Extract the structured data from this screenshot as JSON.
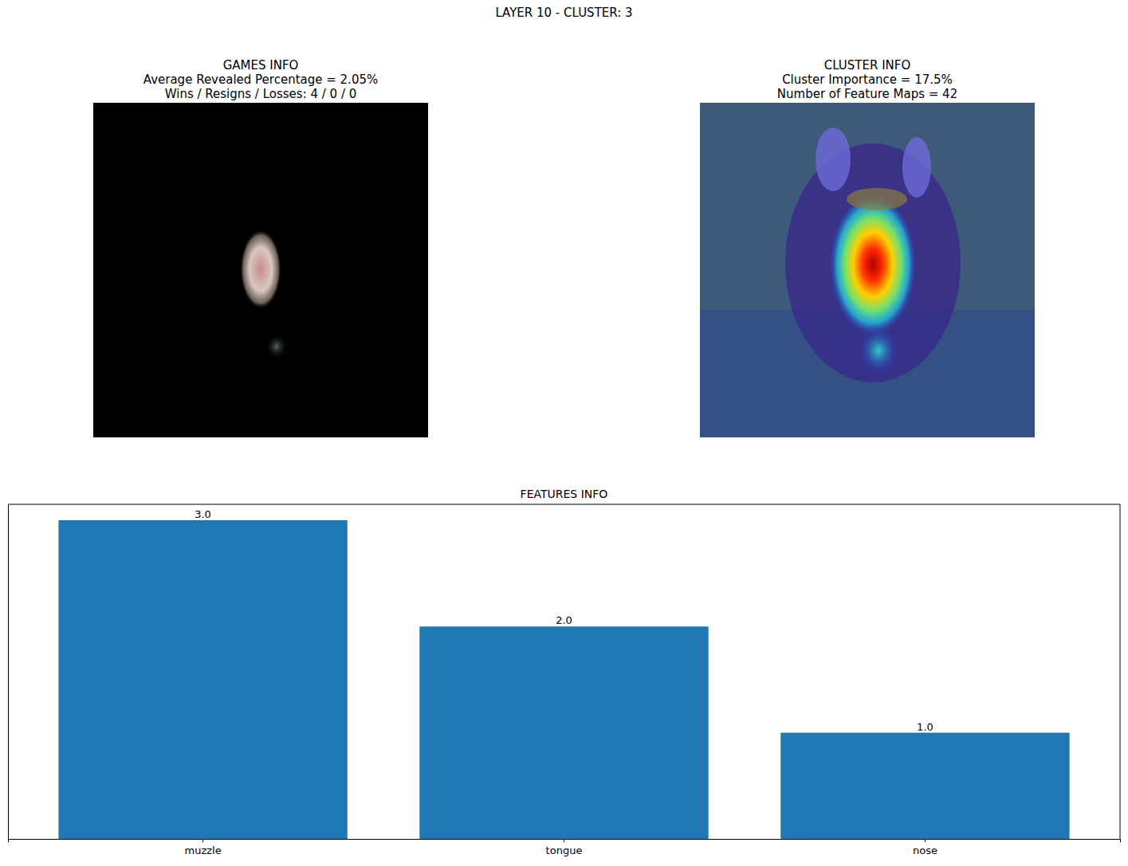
{
  "figure": {
    "title": "LAYER 10 - CLUSTER: 3",
    "panels": [
      {
        "title": [
          "GAMES INFO",
          "Average Revealed Percentage = 2.05%",
          "Wins / Resigns / Losses: 4 / 0 / 0"
        ]
      },
      {
        "title": [
          "CLUSTER INFO",
          "Cluster Importance = 17.5%",
          "Number of Feature Maps = 42"
        ]
      }
    ]
  },
  "chart_data": {
    "type": "bar",
    "title": "FEATURES INFO",
    "categories": [
      "muzzle",
      "tongue",
      "nose"
    ],
    "values": [
      3.0,
      2.0,
      1.0
    ],
    "value_labels": [
      "3.0",
      "2.0",
      "1.0"
    ],
    "data_labels": true,
    "color": "#1f77b4",
    "ylim": [
      0,
      3.15
    ],
    "tick_labels": "x"
  }
}
